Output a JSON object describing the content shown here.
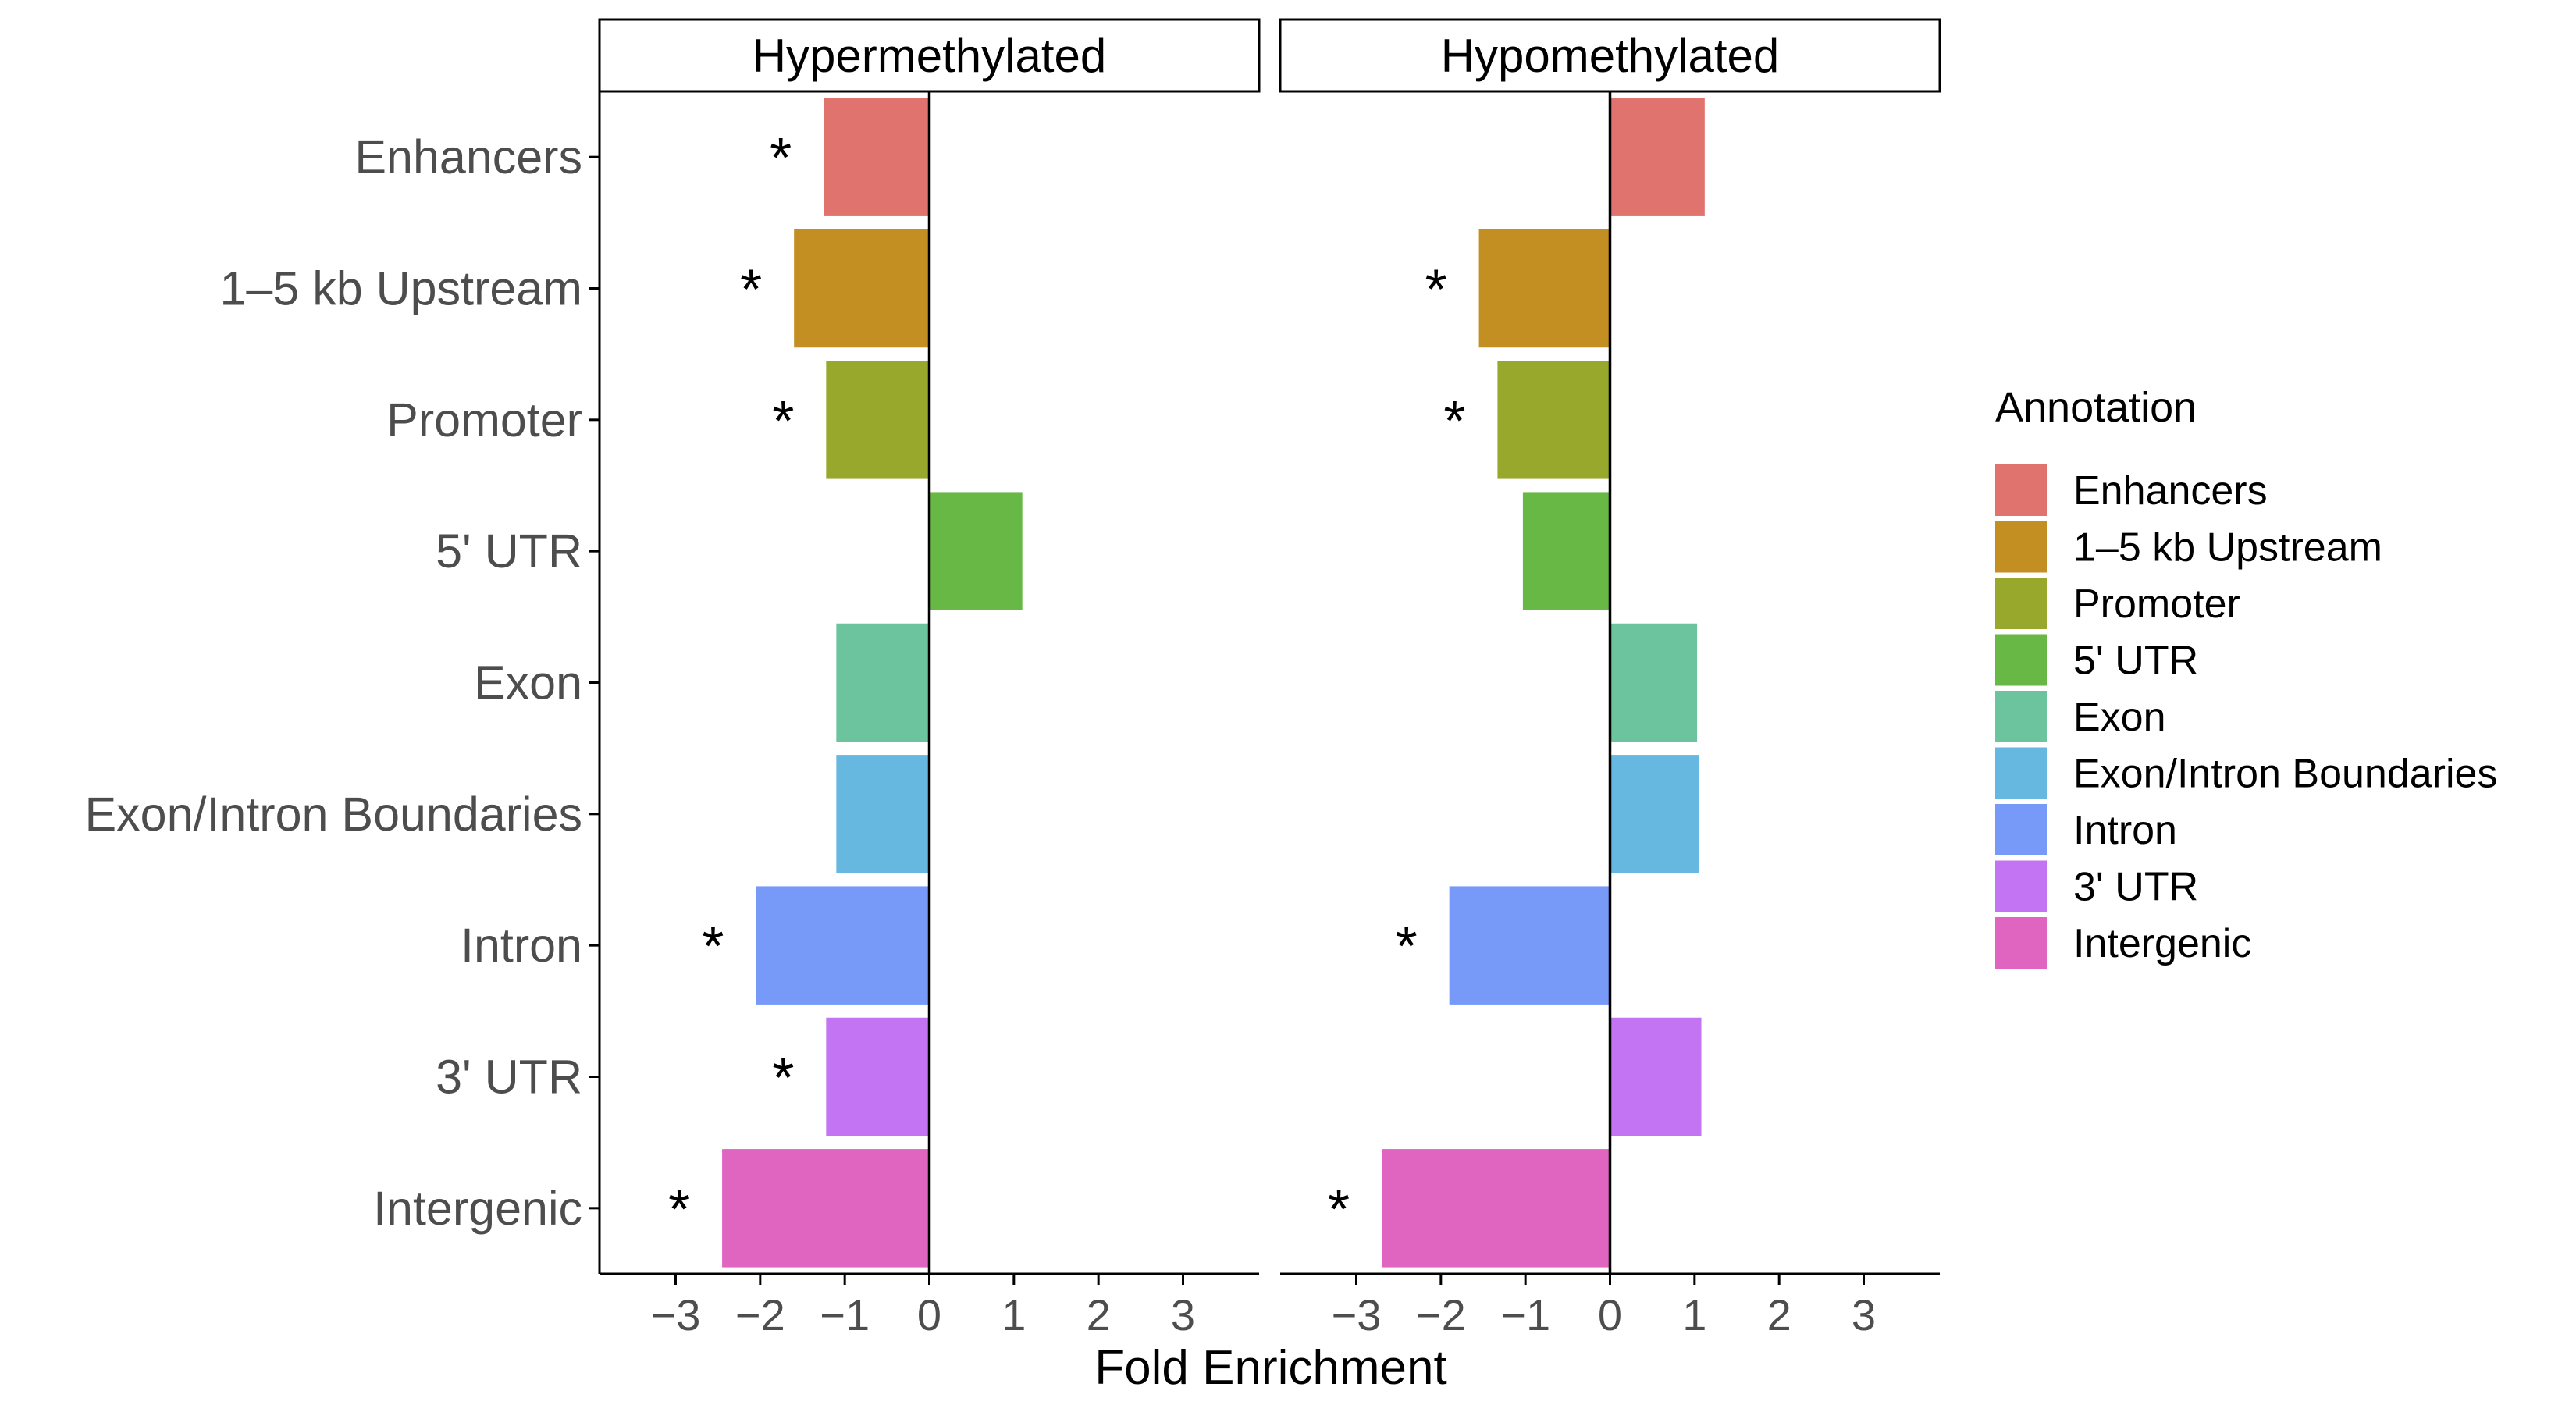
{
  "chart_data": {
    "type": "bar",
    "orientation": "horizontal",
    "xlabel": "Fold Enrichment",
    "xlim": [
      -3.9,
      3.9
    ],
    "xticks": [
      -3,
      -2,
      -1,
      0,
      1,
      2,
      3
    ],
    "xtick_labels": [
      "−3",
      "−2",
      "−1",
      "0",
      "1",
      "2",
      "3"
    ],
    "categories": [
      "Enhancers",
      "1–5 kb Upstream",
      "Promoter",
      "5' UTR",
      "Exon",
      "Exon/Intron Boundaries",
      "Intron",
      "3' UTR",
      "Intergenic"
    ],
    "colors": [
      "#E0736D",
      "#C48F22",
      "#98A82C",
      "#68B845",
      "#6CC49F",
      "#67B8E0",
      "#7799F8",
      "#C274F2",
      "#E065C1"
    ],
    "facets": [
      {
        "label": "Hypermethylated",
        "values": [
          -1.25,
          -1.6,
          -1.22,
          1.1,
          -1.1,
          -1.1,
          -2.05,
          -1.22,
          -2.45
        ],
        "significant": [
          true,
          true,
          true,
          false,
          false,
          false,
          true,
          true,
          true
        ]
      },
      {
        "label": "Hypomethylated",
        "values": [
          1.12,
          -1.55,
          -1.33,
          -1.03,
          1.03,
          1.05,
          -1.9,
          1.08,
          -2.7
        ],
        "significant": [
          false,
          true,
          true,
          false,
          false,
          false,
          true,
          false,
          true
        ]
      }
    ],
    "significance_marker": "*",
    "grid": false,
    "legend": {
      "title": "Annotation",
      "position": "right",
      "entries": [
        "Enhancers",
        "1–5 kb Upstream",
        "Promoter",
        "5' UTR",
        "Exon",
        "Exon/Intron Boundaries",
        "Intron",
        "3' UTR",
        "Intergenic"
      ]
    }
  }
}
